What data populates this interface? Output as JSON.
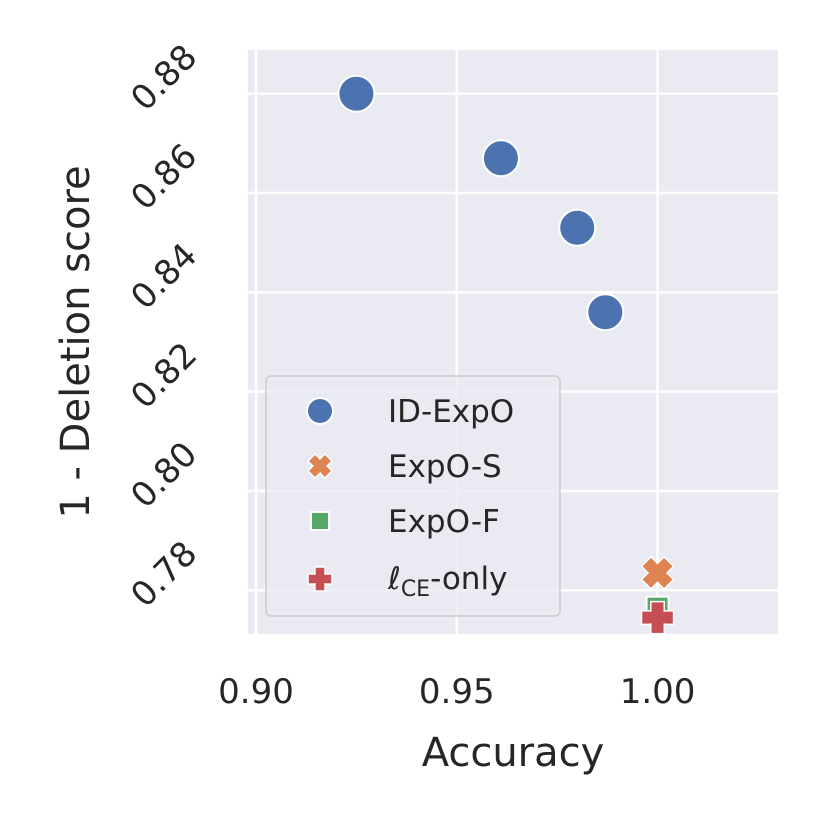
{
  "chart_data": {
    "type": "scatter",
    "xlabel": "Accuracy",
    "ylabel": "1 - Deletion score",
    "xlim": [
      0.898,
      1.03
    ],
    "ylim": [
      0.7712,
      0.8888
    ],
    "xticks": [
      "0.90",
      "0.95",
      "1.00"
    ],
    "yticks": [
      "0.78",
      "0.80",
      "0.82",
      "0.84",
      "0.86",
      "0.88"
    ],
    "grid": true,
    "legend_position": "lower-left",
    "series": [
      {
        "name": "ID-ExpO",
        "marker": "circle",
        "color": "#4c72b0",
        "points": [
          {
            "x": 0.925,
            "y": 0.88
          },
          {
            "x": 0.961,
            "y": 0.867
          },
          {
            "x": 0.98,
            "y": 0.853
          },
          {
            "x": 0.987,
            "y": 0.836
          }
        ]
      },
      {
        "name": "ExpO-S",
        "marker": "x",
        "color": "#dd8452",
        "points": [
          {
            "x": 1.0,
            "y": 0.7835
          }
        ]
      },
      {
        "name": "ExpO-F",
        "marker": "square",
        "color": "#55a868",
        "points": [
          {
            "x": 1.0,
            "y": 0.7765
          }
        ]
      },
      {
        "name_parts": [
          "ℓ",
          "CE",
          "-only"
        ],
        "marker": "plus",
        "color": "#c44e52",
        "points": [
          {
            "x": 1.0,
            "y": 0.7745
          }
        ]
      }
    ]
  }
}
